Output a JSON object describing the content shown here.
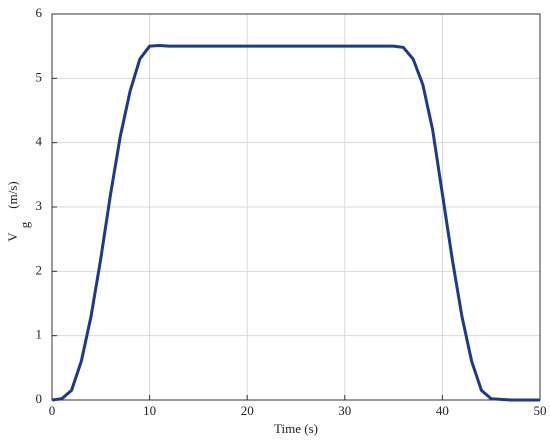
{
  "chart_data": {
    "type": "line",
    "xlabel": "Time (s)",
    "ylabel": {
      "text": "V",
      "subscript": "g",
      "unit": "(m/s)"
    },
    "xlim": [
      0,
      50
    ],
    "ylim": [
      0,
      6
    ],
    "xticks": [
      0,
      10,
      20,
      30,
      40,
      50
    ],
    "yticks": [
      0,
      1,
      2,
      3,
      4,
      5,
      6
    ],
    "grid": true,
    "x": [
      0,
      1,
      2,
      3,
      4,
      5,
      6,
      7,
      8,
      9,
      10,
      11,
      12,
      13,
      14,
      15,
      16,
      17,
      18,
      19,
      20,
      21,
      22,
      23,
      24,
      25,
      26,
      27,
      28,
      29,
      30,
      31,
      32,
      33,
      34,
      35,
      36,
      37,
      38,
      39,
      40,
      41,
      42,
      43,
      44,
      45,
      46,
      47,
      48,
      49,
      50
    ],
    "series": [
      {
        "color": "#1b3a8c",
        "values": [
          0,
          0.02,
          0.15,
          0.6,
          1.3,
          2.2,
          3.2,
          4.1,
          4.8,
          5.3,
          5.5,
          5.51,
          5.5,
          5.5,
          5.5,
          5.5,
          5.5,
          5.5,
          5.5,
          5.5,
          5.5,
          5.5,
          5.5,
          5.5,
          5.5,
          5.5,
          5.5,
          5.5,
          5.5,
          5.5,
          5.5,
          5.5,
          5.5,
          5.5,
          5.5,
          5.5,
          5.48,
          5.3,
          4.9,
          4.2,
          3.2,
          2.2,
          1.3,
          0.6,
          0.15,
          0.02,
          0.01,
          0,
          0,
          0,
          0
        ]
      }
    ]
  }
}
